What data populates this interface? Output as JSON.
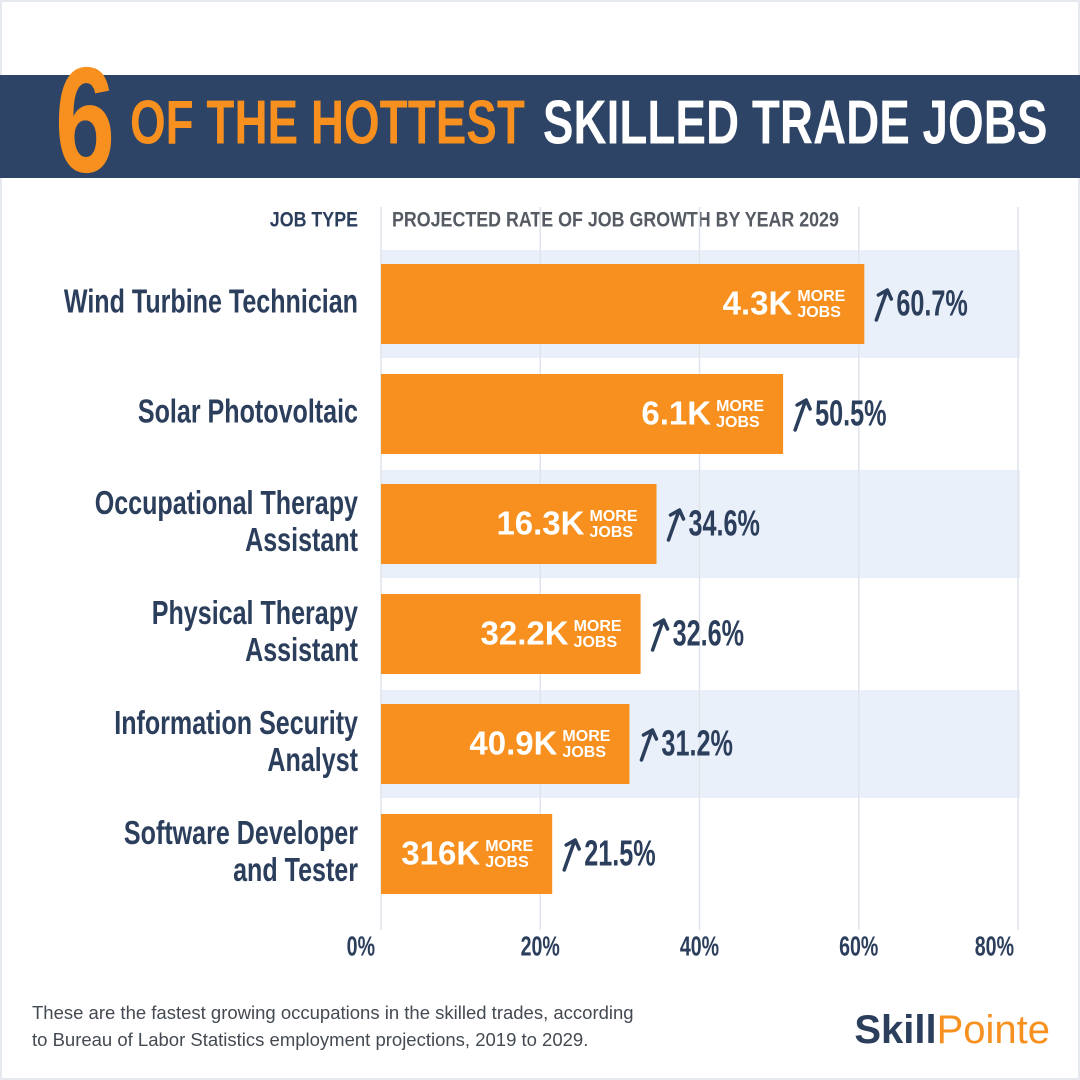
{
  "chart_data": {
    "type": "bar",
    "title_number": "6",
    "title_highlight": "OF THE HOTTEST",
    "title_rest": "SKILLED TRADE JOBS",
    "category_header": "JOB TYPE",
    "value_header": "PROJECTED RATE OF JOB GROWTH BY YEAR 2029",
    "categories": [
      "Wind Turbine Technician",
      "Solar Photovoltaic",
      "Occupational Therapy Assistant",
      "Physical Therapy Assistant",
      "Information Security Analyst",
      "Software Developer and Tester"
    ],
    "category_lines": [
      [
        "Wind Turbine Technician"
      ],
      [
        "Solar Photovoltaic"
      ],
      [
        "Occupational Therapy",
        "Assistant"
      ],
      [
        "Physical Therapy",
        "Assistant"
      ],
      [
        "Information Security",
        "Analyst"
      ],
      [
        "Software Developer",
        "and Tester"
      ]
    ],
    "values": [
      60.7,
      50.5,
      34.6,
      32.6,
      31.2,
      21.5
    ],
    "value_labels": [
      "60.7%",
      "50.5%",
      "34.6%",
      "32.6%",
      "31.2%",
      "21.5%"
    ],
    "jobs": {
      "values": [
        4300,
        6100,
        16300,
        32200,
        40900,
        316000
      ],
      "value_labels": [
        "4.3K",
        "6.1K",
        "16.3K",
        "32.2K",
        "40.9K",
        "316K"
      ]
    },
    "jobs_suffix": [
      "MORE",
      "JOBS"
    ],
    "color": "#f7901e",
    "xlim": [
      0,
      80
    ],
    "xticks": [
      {
        "value": 0,
        "label": "0%"
      },
      {
        "value": 20,
        "label": "20%"
      },
      {
        "value": 40,
        "label": "40%"
      },
      {
        "value": 60,
        "label": "60%"
      },
      {
        "value": 80,
        "label": "80%"
      }
    ],
    "grid": true,
    "footnote": [
      "These are the fastest growing occupations in the skilled trades, according",
      "to Bureau of Labor Statistics employment projections, 2019 to 2029."
    ],
    "logo": [
      "Skill",
      "Pointe"
    ]
  }
}
